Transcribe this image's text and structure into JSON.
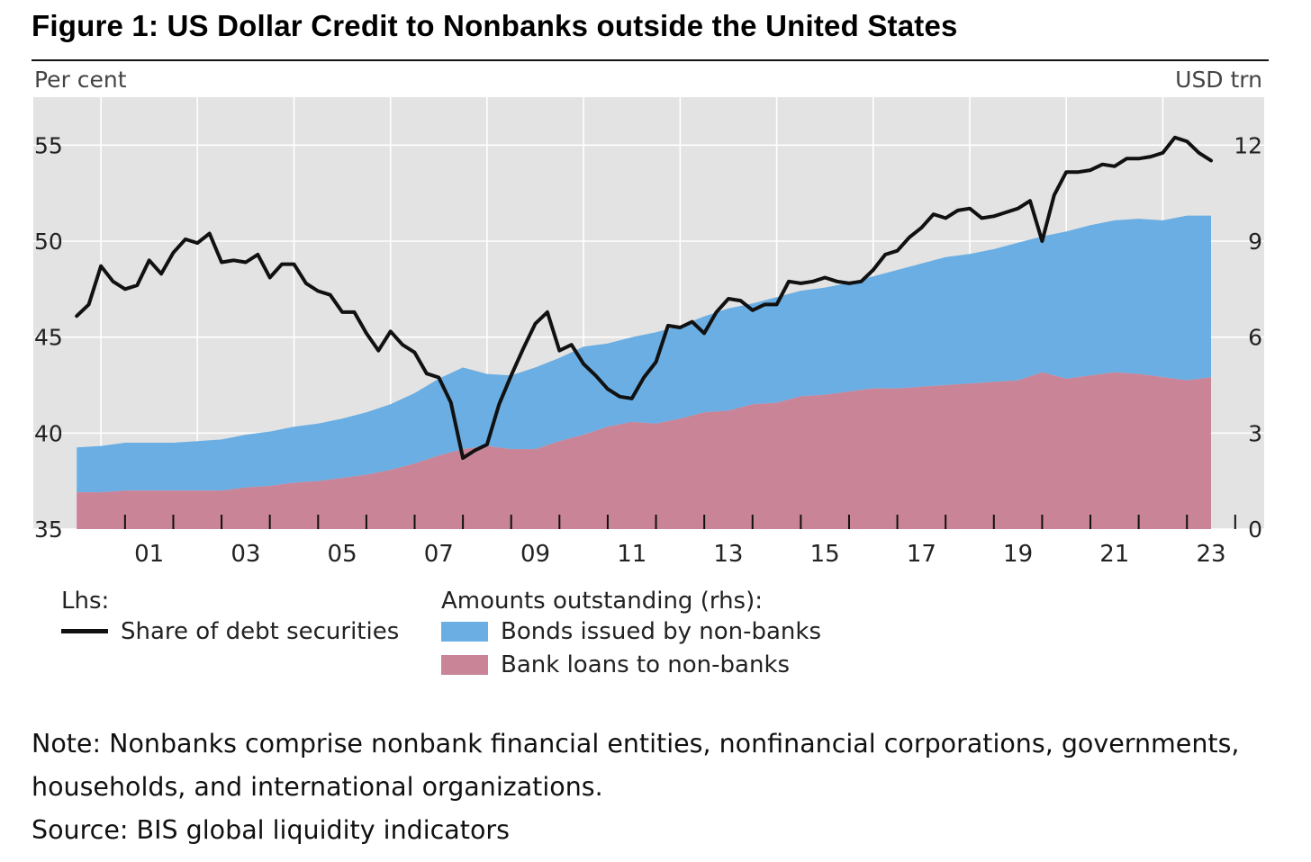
{
  "title": "Figure 1: US Dollar Credit to Nonbanks outside the United States",
  "note": "Note: Nonbanks comprise nonbank financial entities, nonfinancial corporations, governments, households, and international organizations.",
  "source": "Source: BIS global liquidity indicators",
  "legend": {
    "lhs_header": "Lhs:",
    "line_label": "Share of debt securities",
    "rhs_header": "Amounts outstanding (rhs):",
    "bonds_label": "Bonds issued by non-banks",
    "loans_label": "Bank loans to non-banks"
  },
  "colors": {
    "plot_bg": "#e3e3e3",
    "bonds": "#6aaee3",
    "loans": "#c98497",
    "line": "#111111"
  },
  "chart_data": {
    "type": "area",
    "left_axis": {
      "label": "Per cent",
      "ylim": [
        35,
        57.5
      ],
      "ticks": [
        35,
        40,
        45,
        50,
        55
      ]
    },
    "right_axis": {
      "label": "USD trn",
      "ylim": [
        0,
        13.5
      ],
      "ticks": [
        0,
        3,
        6,
        9,
        12
      ]
    },
    "x_axis": {
      "xlim": [
        1999.1,
        2024.6
      ],
      "tick_labels": [
        "01",
        "03",
        "05",
        "07",
        "09",
        "11",
        "13",
        "15",
        "17",
        "19",
        "21",
        "23"
      ],
      "tick_years": [
        2001,
        2003,
        2005,
        2007,
        2009,
        2011,
        2013,
        2015,
        2017,
        2019,
        2021,
        2023
      ]
    },
    "grid": true,
    "series": [
      {
        "name": "Bank loans to non-banks",
        "axis": "right",
        "kind": "stacked-area",
        "x": [
          2000.0,
          2000.5,
          2001.0,
          2001.5,
          2002.0,
          2002.5,
          2003.0,
          2003.5,
          2004.0,
          2004.5,
          2005.0,
          2005.5,
          2006.0,
          2006.5,
          2007.0,
          2007.5,
          2008.0,
          2008.5,
          2009.0,
          2009.5,
          2010.0,
          2010.5,
          2011.0,
          2011.5,
          2012.0,
          2012.5,
          2013.0,
          2013.5,
          2014.0,
          2014.5,
          2015.0,
          2015.5,
          2016.0,
          2016.5,
          2017.0,
          2017.5,
          2018.0,
          2018.5,
          2019.0,
          2019.5,
          2020.0,
          2020.5,
          2021.0,
          2021.5,
          2022.0,
          2022.5,
          2023.0,
          2023.5
        ],
        "values": [
          1.15,
          1.15,
          1.2,
          1.2,
          1.2,
          1.2,
          1.2,
          1.3,
          1.35,
          1.45,
          1.5,
          1.6,
          1.7,
          1.85,
          2.05,
          2.3,
          2.5,
          2.6,
          2.5,
          2.5,
          2.75,
          2.95,
          3.2,
          3.35,
          3.3,
          3.45,
          3.65,
          3.7,
          3.9,
          3.95,
          4.15,
          4.2,
          4.3,
          4.4,
          4.4,
          4.45,
          4.5,
          4.55,
          4.6,
          4.65,
          4.9,
          4.7,
          4.8,
          4.9,
          4.85,
          4.75,
          4.65,
          4.75
        ]
      },
      {
        "name": "Bonds issued by non-banks",
        "axis": "right",
        "kind": "stacked-area",
        "x": [
          2000.0,
          2000.5,
          2001.0,
          2001.5,
          2002.0,
          2002.5,
          2003.0,
          2003.5,
          2004.0,
          2004.5,
          2005.0,
          2005.5,
          2006.0,
          2006.5,
          2007.0,
          2007.5,
          2008.0,
          2008.5,
          2009.0,
          2009.5,
          2010.0,
          2010.5,
          2011.0,
          2011.5,
          2012.0,
          2012.5,
          2013.0,
          2013.5,
          2014.0,
          2014.5,
          2015.0,
          2015.5,
          2016.0,
          2016.5,
          2017.0,
          2017.5,
          2018.0,
          2018.5,
          2019.0,
          2019.5,
          2020.0,
          2020.5,
          2021.0,
          2021.5,
          2022.0,
          2022.5,
          2023.0,
          2023.5
        ],
        "values": [
          1.4,
          1.45,
          1.5,
          1.5,
          1.5,
          1.55,
          1.6,
          1.65,
          1.7,
          1.75,
          1.8,
          1.85,
          1.95,
          2.05,
          2.2,
          2.4,
          2.55,
          2.25,
          2.3,
          2.55,
          2.6,
          2.75,
          2.6,
          2.65,
          2.85,
          2.9,
          3.0,
          3.2,
          3.15,
          3.3,
          3.3,
          3.35,
          3.4,
          3.5,
          3.7,
          3.85,
          4.0,
          4.05,
          4.15,
          4.3,
          4.25,
          4.6,
          4.7,
          4.75,
          4.85,
          4.9,
          5.15,
          5.05
        ]
      },
      {
        "name": "Share of debt securities",
        "axis": "left",
        "kind": "line",
        "x": [
          2000.0,
          2000.25,
          2000.5,
          2000.75,
          2001.0,
          2001.25,
          2001.5,
          2001.75,
          2002.0,
          2002.25,
          2002.5,
          2002.75,
          2003.0,
          2003.25,
          2003.5,
          2003.75,
          2004.0,
          2004.25,
          2004.5,
          2004.75,
          2005.0,
          2005.25,
          2005.5,
          2005.75,
          2006.0,
          2006.25,
          2006.5,
          2006.75,
          2007.0,
          2007.25,
          2007.5,
          2007.75,
          2008.0,
          2008.25,
          2008.5,
          2008.75,
          2009.0,
          2009.25,
          2009.5,
          2009.75,
          2010.0,
          2010.25,
          2010.5,
          2010.75,
          2011.0,
          2011.25,
          2011.5,
          2011.75,
          2012.0,
          2012.25,
          2012.5,
          2012.75,
          2013.0,
          2013.25,
          2013.5,
          2013.75,
          2014.0,
          2014.25,
          2014.5,
          2014.75,
          2015.0,
          2015.25,
          2015.5,
          2015.75,
          2016.0,
          2016.25,
          2016.5,
          2016.75,
          2017.0,
          2017.25,
          2017.5,
          2017.75,
          2018.0,
          2018.25,
          2018.5,
          2018.75,
          2019.0,
          2019.25,
          2019.5,
          2019.75,
          2020.0,
          2020.25,
          2020.5,
          2020.75,
          2021.0,
          2021.25,
          2021.5,
          2021.75,
          2022.0,
          2022.25,
          2022.5,
          2022.75,
          2023.0,
          2023.25,
          2023.5
        ],
        "values": [
          46.1,
          46.7,
          48.7,
          47.9,
          47.5,
          47.7,
          49.0,
          48.3,
          49.4,
          50.1,
          49.9,
          50.4,
          48.9,
          49.0,
          48.9,
          49.3,
          48.1,
          48.8,
          48.8,
          47.8,
          47.4,
          47.2,
          46.3,
          46.3,
          45.2,
          44.3,
          45.3,
          44.6,
          44.2,
          43.1,
          42.9,
          41.6,
          38.7,
          39.1,
          39.4,
          41.5,
          43.0,
          44.4,
          45.7,
          46.3,
          44.3,
          44.6,
          43.6,
          43.0,
          42.3,
          41.9,
          41.8,
          42.9,
          43.7,
          45.6,
          45.5,
          45.8,
          45.2,
          46.3,
          47.0,
          46.9,
          46.4,
          46.7,
          46.7,
          47.9,
          47.8,
          47.9,
          48.1,
          47.9,
          47.8,
          47.9,
          48.5,
          49.3,
          49.5,
          50.2,
          50.7,
          51.4,
          51.2,
          51.6,
          51.7,
          51.2,
          51.3,
          51.5,
          51.7,
          52.1,
          50.0,
          52.4,
          53.6,
          53.6,
          53.7,
          54.0,
          53.9,
          54.3,
          54.3,
          54.4,
          54.6,
          55.4,
          55.2,
          54.6,
          54.2
        ]
      }
    ]
  }
}
